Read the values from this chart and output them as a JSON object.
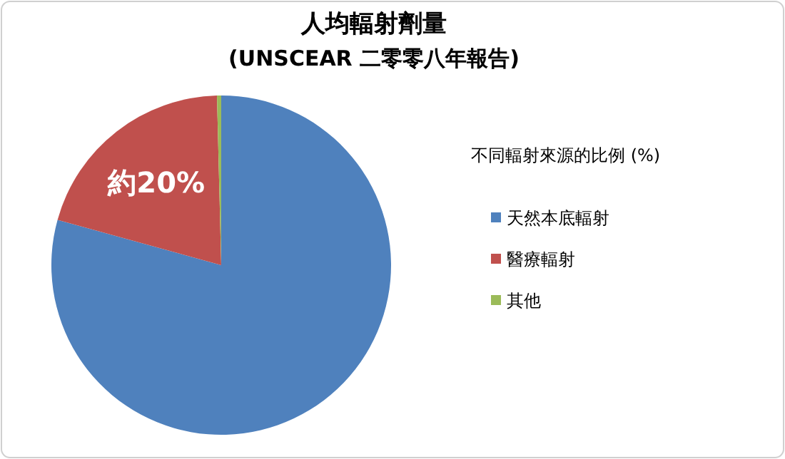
{
  "chart_data": {
    "type": "pie",
    "title": "人均輻射劑量",
    "subtitle": "(UNSCEAR 二零零八年報告)",
    "legend_title": "不同輻射來源的比例 (%)",
    "categories": [
      "天然本底輻射",
      "醫療輻射",
      "其他"
    ],
    "values": [
      79.3,
      20.3,
      0.4
    ],
    "colors": [
      "#4f81bd",
      "#c0504d",
      "#9bbb59"
    ],
    "value_labels": [
      null,
      "約20%",
      null
    ],
    "legend": "right"
  }
}
